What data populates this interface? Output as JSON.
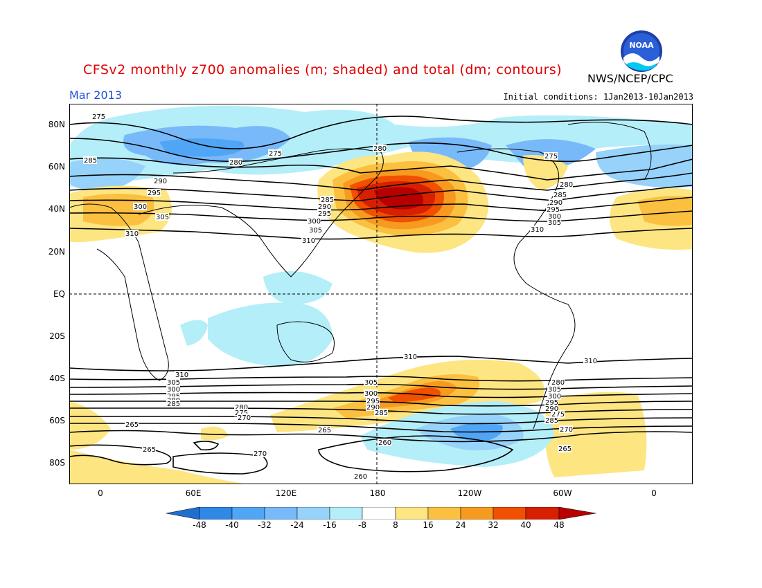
{
  "header": {
    "title": "CFSv2 monthly z700 anomalies (m; shaded) and total (dm; contours)",
    "agency": "NWS/NCEP/CPC",
    "month": "Mar 2013",
    "initial_conditions": "Initial conditions: 1Jan2013-10Jan2013",
    "logo_text": "NOAA"
  },
  "map": {
    "lat_labels": [
      "80N",
      "60N",
      "40N",
      "20N",
      "EQ",
      "20S",
      "40S",
      "60S",
      "80S"
    ],
    "lon_labels": [
      "0",
      "60E",
      "120E",
      "180",
      "120W",
      "60W",
      "0"
    ],
    "contour_labels_north": [
      "275",
      "275",
      "280",
      "285",
      "280",
      "290",
      "295",
      "300",
      "305",
      "310",
      "285",
      "290",
      "295",
      "300",
      "305",
      "310",
      "275",
      "280",
      "285",
      "290",
      "295",
      "300",
      "305",
      "310"
    ],
    "contour_labels_south": [
      "310",
      "305",
      "300",
      "295",
      "290",
      "285",
      "280",
      "275",
      "270",
      "265",
      "265",
      "270",
      "260",
      "260",
      "265",
      "310",
      "305",
      "300",
      "295",
      "290",
      "285",
      "280",
      "275",
      "270",
      "265",
      "310",
      "305",
      "300",
      "295",
      "290",
      "285"
    ],
    "colors": {
      "strong_positive": "#b80000",
      "positive_40": "#d82000",
      "positive_32": "#f05000",
      "positive_24": "#f79a20",
      "positive_16": "#fbc040",
      "positive_8": "#fde582",
      "negative_8": "#b4eef8",
      "negative_16": "#96d2fa",
      "negative_24": "#78b9fa",
      "negative_32": "#50a5f5",
      "negative_40": "#2f87e6",
      "negative_48": "#1f6fd0"
    }
  },
  "colorbar": {
    "labels": [
      "-48",
      "-40",
      "-32",
      "-24",
      "-16",
      "-8",
      "8",
      "16",
      "24",
      "32",
      "40",
      "48"
    ]
  }
}
